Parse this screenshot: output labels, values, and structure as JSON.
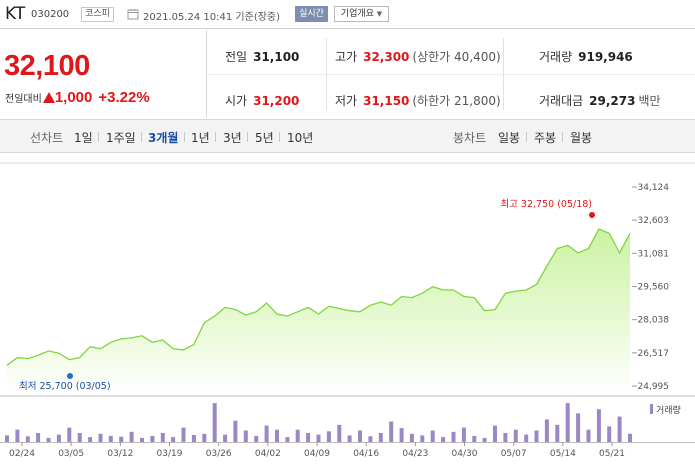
{
  "header": {
    "name": "KT",
    "code": "030200",
    "market": "코스피",
    "datetime": "2021.05.24 10:41 기준(장중)",
    "realtime_label": "실시간",
    "company_info_label": "기업개요"
  },
  "price": {
    "current": "32,100",
    "change_label": "전일대비",
    "change_value": "1,000",
    "change_percent": "+3.22%",
    "direction": "up"
  },
  "stats": {
    "prev_close_label": "전일",
    "prev_close": "31,100",
    "high_label": "고가",
    "high": "32,300",
    "upper_limit": "(상한가 40,400)",
    "volume_label": "거래량",
    "volume": "919,946",
    "open_label": "시가",
    "open": "31,200",
    "low_label": "저가",
    "low": "31,150",
    "lower_limit": "(하한가 21,800)",
    "amount_label": "거래대금",
    "amount": "29,273",
    "amount_unit": "백만"
  },
  "tabs": {
    "line_chart_label": "선차트",
    "periods": [
      "1일",
      "1주일",
      "3개월",
      "1년",
      "3년",
      "5년",
      "10년"
    ],
    "active_period": "3개월",
    "candle_chart_label": "봉차트",
    "candle_periods": [
      "일봉",
      "주봉",
      "월봉"
    ]
  },
  "colors": {
    "up": "#e0161a",
    "line": "#7fd53f",
    "area_top": "#c9f29d",
    "volume_bar": "#9b87c7",
    "low_marker": "#1a6fd0",
    "active_tab": "#1c4ea8"
  },
  "chart_data": {
    "type": "area",
    "y_ticks": [
      "34,124",
      "32,603",
      "31,081",
      "29,560",
      "28,038",
      "26,517",
      "24,995"
    ],
    "ylim": [
      24995,
      34124
    ],
    "date_ticks": [
      "02/24",
      "03/05",
      "03/12",
      "03/19",
      "03/26",
      "04/02",
      "04/09",
      "04/16",
      "04/23",
      "04/30",
      "05/07",
      "05/14",
      "05/21"
    ],
    "high_label": "최고 32,750 (05/18)",
    "low_label": "최저 25,700 (03/05)",
    "volume_legend": "거래량",
    "series": [
      {
        "name": "종가",
        "values": [
          25950,
          26300,
          26250,
          26400,
          26600,
          26500,
          26200,
          26300,
          26800,
          26700,
          27000,
          27150,
          27200,
          27300,
          27000,
          27100,
          26700,
          26650,
          26900,
          27900,
          28200,
          28600,
          28500,
          28250,
          28400,
          28800,
          28300,
          28200,
          28400,
          28600,
          28300,
          28650,
          28550,
          28450,
          28400,
          28700,
          28850,
          28700,
          29100,
          29050,
          29250,
          29550,
          29400,
          29400,
          29100,
          29050,
          28450,
          28500,
          29250,
          29350,
          29400,
          29650,
          30500,
          31300,
          31450,
          31100,
          31300,
          32200,
          32000,
          31100,
          32000
        ]
      },
      {
        "name": "거래량",
        "values": [
          0.16,
          0.3,
          0.14,
          0.22,
          0.1,
          0.18,
          0.35,
          0.22,
          0.12,
          0.2,
          0.15,
          0.13,
          0.25,
          0.1,
          0.15,
          0.22,
          0.12,
          0.35,
          0.17,
          0.2,
          0.95,
          0.18,
          0.52,
          0.28,
          0.15,
          0.4,
          0.3,
          0.12,
          0.3,
          0.22,
          0.18,
          0.26,
          0.42,
          0.16,
          0.28,
          0.14,
          0.22,
          0.5,
          0.34,
          0.2,
          0.16,
          0.28,
          0.12,
          0.25,
          0.35,
          0.15,
          0.1,
          0.4,
          0.22,
          0.3,
          0.18,
          0.28,
          0.55,
          0.42,
          0.95,
          0.7,
          0.3,
          0.8,
          0.38,
          0.62,
          0.2
        ]
      }
    ]
  }
}
